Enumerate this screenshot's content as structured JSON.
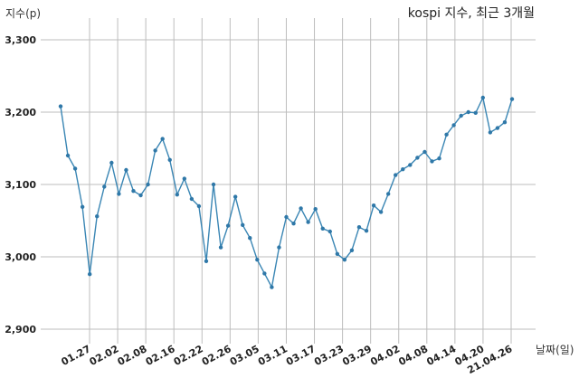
{
  "chart_data": {
    "type": "line",
    "title": "kospi 지수, 최근 3개월",
    "ylabel": "지수(p)",
    "xlabel": "날짜(일)",
    "ylim": [
      2880,
      3330
    ],
    "yticks": [
      2900,
      3000,
      3100,
      3200,
      3300
    ],
    "ytick_labels": [
      "2,900",
      "3,000",
      "3,100",
      "3,200",
      "3,300"
    ],
    "xtick_labels": [
      "01.27",
      "02.02",
      "02.08",
      "02.16",
      "02.22",
      "02.26",
      "03.05",
      "03.11",
      "03.17",
      "03.23",
      "03.29",
      "04.02",
      "04.08",
      "04.14",
      "04.20",
      "21.04.26"
    ],
    "grid": true,
    "color": "#3a86b4",
    "series": [
      {
        "values": [
          3208,
          3140,
          3122,
          3069,
          2976,
          3056,
          3097,
          3130,
          3087,
          3120,
          3091,
          3085,
          3100,
          3147,
          3163,
          3134,
          3086,
          3108,
          3080,
          3070,
          2994,
          3100,
          3013,
          3043,
          3083,
          3044,
          3026,
          2996,
          2977,
          2958,
          3013,
          3055,
          3046,
          3067,
          3048,
          3066,
          3039,
          3035,
          3004,
          2996,
          3009,
          3041,
          3036,
          3071,
          3062,
          3087,
          3113,
          3121,
          3127,
          3137,
          3145,
          3132,
          3136,
          3169,
          3182,
          3195,
          3200,
          3199,
          3220,
          3172,
          3178,
          3186,
          3218
        ]
      }
    ]
  }
}
